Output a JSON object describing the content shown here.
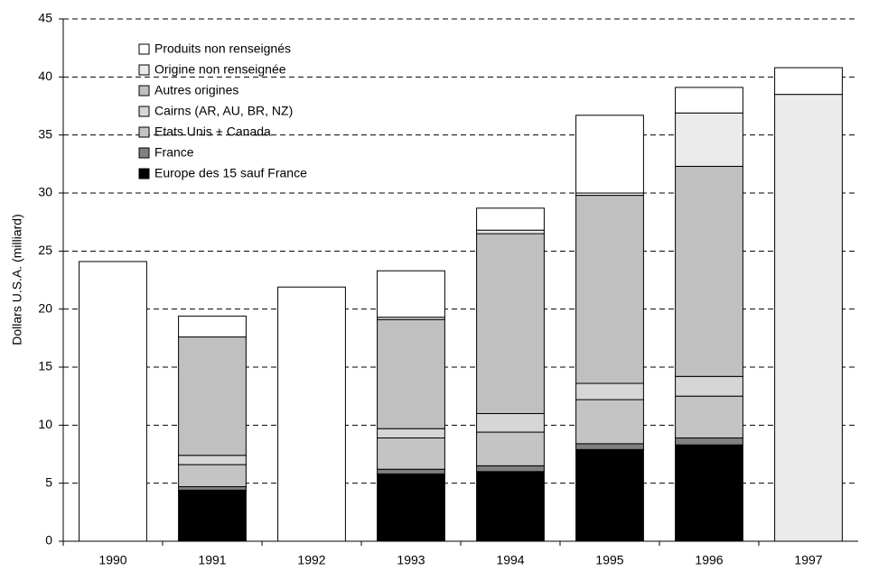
{
  "chart_data": {
    "type": "stacked_bar",
    "y_label": "Dollars U.S.A. (milliard)",
    "categories": [
      "1990",
      "1991",
      "1992",
      "1993",
      "1994",
      "1995",
      "1996",
      "1997"
    ],
    "series": [
      {
        "name": "Europe des 15 sauf France",
        "color": "#000000",
        "values": [
          null,
          4.4,
          null,
          5.8,
          6.0,
          7.9,
          8.3,
          null
        ]
      },
      {
        "name": "France",
        "color": "#808080",
        "values": [
          null,
          0.3,
          null,
          0.4,
          0.5,
          0.5,
          0.6,
          null
        ]
      },
      {
        "name": "Etats Unis + Canada",
        "color": "#c4c4c4",
        "values": [
          null,
          1.9,
          null,
          2.7,
          2.9,
          3.8,
          3.6,
          null
        ]
      },
      {
        "name": "Cairns (AR, AU, BR, NZ)",
        "color": "#d6d6d6",
        "values": [
          null,
          0.8,
          null,
          0.8,
          1.6,
          1.4,
          1.7,
          null
        ]
      },
      {
        "name": "Autres origines",
        "color": "#c0c0c0",
        "values": [
          null,
          10.2,
          null,
          9.4,
          15.5,
          16.2,
          18.1,
          null
        ]
      },
      {
        "name": "Origine non renseignée",
        "color": "#ebebeb",
        "values": [
          null,
          null,
          null,
          0.2,
          0.3,
          0.2,
          4.6,
          38.5
        ]
      },
      {
        "name": "Produits non renseignés",
        "color": "#ffffff",
        "values": [
          24.1,
          1.8,
          21.9,
          4.0,
          1.9,
          6.7,
          2.2,
          2.3
        ]
      }
    ],
    "ylim": [
      0,
      45
    ],
    "yticks": [
      0,
      5,
      10,
      15,
      20,
      25,
      30,
      35,
      40,
      45
    ],
    "grid": true,
    "legend": "upper left"
  }
}
